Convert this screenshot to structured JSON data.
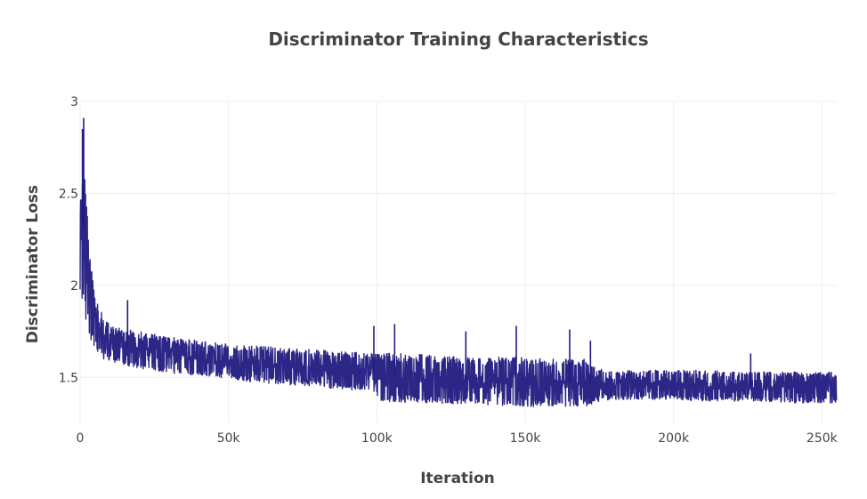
{
  "chart_data": {
    "type": "line",
    "title": "Discriminator Training Characteristics",
    "xlabel": "Iteration",
    "ylabel": "Discriminator Loss",
    "xlim": [
      0,
      255000
    ],
    "ylim": [
      1.25,
      3.0
    ],
    "x_ticks": [
      0,
      50000,
      100000,
      150000,
      200000,
      250000
    ],
    "x_tick_labels": [
      "0",
      "50k",
      "100k",
      "150k",
      "200k",
      "250k"
    ],
    "y_ticks": [
      1.5,
      2.0,
      2.5,
      3.0
    ],
    "y_tick_labels": [
      "1.5",
      "2",
      "2.5",
      "3"
    ],
    "grid": true,
    "legend": false,
    "series_color": "#211a80",
    "series": [
      {
        "envelope": {
          "x": [
            0,
            1000,
            2000,
            3000,
            5000,
            8000,
            12000,
            20000,
            30000,
            40000,
            50000,
            60000,
            70000,
            80000,
            90000,
            99000,
            101000,
            110000,
            120000,
            130000,
            140000,
            150000,
            160000,
            170000,
            175000,
            180000,
            190000,
            200000,
            210000,
            220000,
            230000,
            240000,
            250000,
            255000
          ],
          "lower": [
            1.85,
            1.9,
            1.8,
            1.72,
            1.66,
            1.6,
            1.58,
            1.55,
            1.52,
            1.51,
            1.49,
            1.47,
            1.46,
            1.45,
            1.43,
            1.42,
            1.37,
            1.36,
            1.36,
            1.35,
            1.35,
            1.34,
            1.34,
            1.34,
            1.37,
            1.38,
            1.38,
            1.38,
            1.37,
            1.37,
            1.37,
            1.36,
            1.36,
            1.36
          ],
          "upper": [
            2.85,
            2.75,
            2.55,
            2.2,
            1.95,
            1.82,
            1.77,
            1.75,
            1.72,
            1.7,
            1.68,
            1.67,
            1.66,
            1.65,
            1.64,
            1.63,
            1.63,
            1.63,
            1.62,
            1.61,
            1.61,
            1.61,
            1.6,
            1.6,
            1.55,
            1.54,
            1.54,
            1.54,
            1.54,
            1.53,
            1.53,
            1.53,
            1.53,
            1.53
          ]
        },
        "spikes": [
          {
            "x": 1200,
            "y": 2.91
          },
          {
            "x": 800,
            "y": 2.85
          },
          {
            "x": 16000,
            "y": 1.92
          },
          {
            "x": 99000,
            "y": 1.78
          },
          {
            "x": 106000,
            "y": 1.79
          },
          {
            "x": 130000,
            "y": 1.75
          },
          {
            "x": 147000,
            "y": 1.78
          },
          {
            "x": 165000,
            "y": 1.76
          },
          {
            "x": 172000,
            "y": 1.7
          },
          {
            "x": 226000,
            "y": 1.63
          }
        ]
      }
    ]
  }
}
